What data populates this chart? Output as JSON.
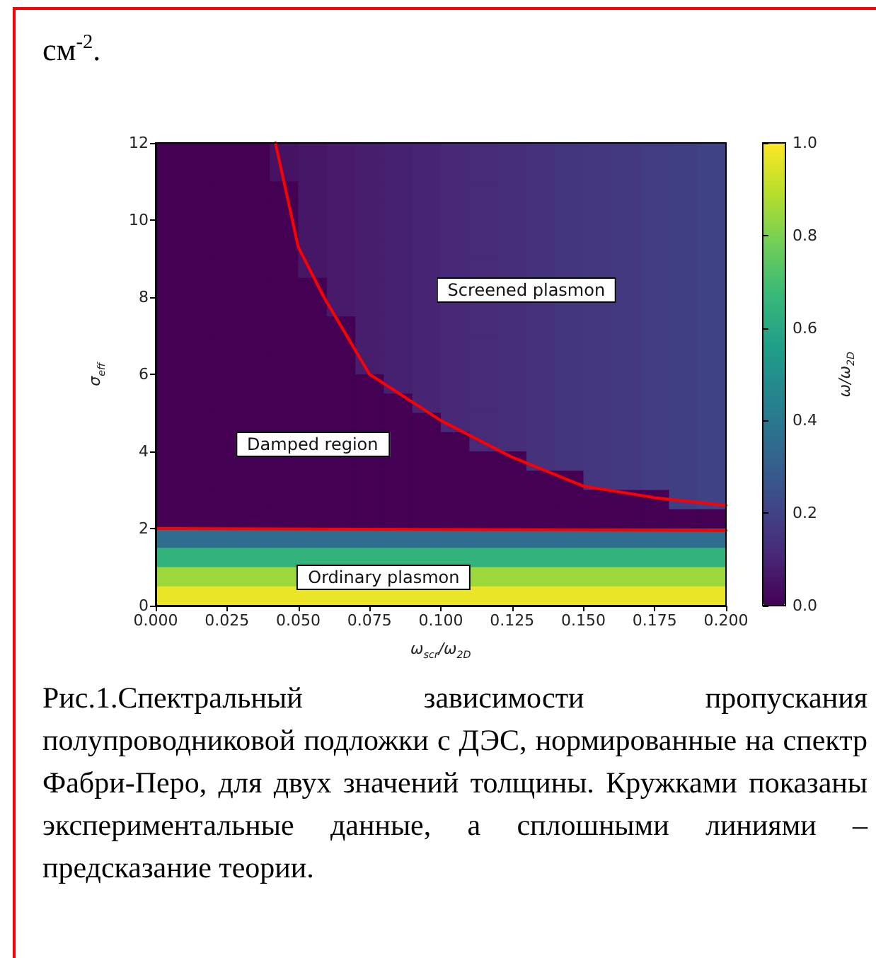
{
  "chart_data": {
    "type": "heatmap",
    "xlabel": "ω$_{scr}$/ω$_{2D}$",
    "ylabel": "σ$_{eff}$",
    "clabel": "ω/ω$_{2D}$",
    "xlim": [
      0,
      0.2
    ],
    "xticks": [
      {
        "value": 0,
        "label": "0.000"
      },
      {
        "value": 0.025,
        "label": "0.025"
      },
      {
        "value": 0.05,
        "label": "0.050"
      },
      {
        "value": 0.075,
        "label": "0.075"
      },
      {
        "value": 0.1,
        "label": "0.100"
      },
      {
        "value": 0.125,
        "label": "0.125"
      },
      {
        "value": 0.15,
        "label": "0.150"
      },
      {
        "value": 0.175,
        "label": "0.175"
      },
      {
        "value": 0.2,
        "label": "0.200"
      }
    ],
    "ylim": [
      0,
      12
    ],
    "yticks": [
      0,
      2,
      4,
      6,
      8,
      10,
      12
    ],
    "clim": [
      0,
      1
    ],
    "cticks": [
      {
        "value": 0,
        "label": "0.0"
      },
      {
        "value": 0.2,
        "label": "0.2"
      },
      {
        "value": 0.4,
        "label": "0.4"
      },
      {
        "value": 0.6,
        "label": "0.6"
      },
      {
        "value": 0.8,
        "label": "0.8"
      },
      {
        "value": 1,
        "label": "1.0"
      }
    ],
    "colors": [
      "#440154",
      "#482878",
      "#3e4989",
      "#31688e",
      "#26828e",
      "#1f9e89",
      "#35b779",
      "#6ece58",
      "#b5de2b",
      "#fde725"
    ],
    "cells": [
      [
        0,
        0,
        0,
        0,
        0.05,
        0.06,
        0.07,
        0.08,
        0.09,
        0.1,
        0.11,
        0.12,
        0.13,
        0.14,
        0.15,
        0.16,
        0.17,
        0.18,
        0.19,
        0.2
      ],
      [
        0,
        0,
        0,
        0,
        0.05,
        0.06,
        0.07,
        0.08,
        0.09,
        0.1,
        0.11,
        0.12,
        0.13,
        0.14,
        0.15,
        0.16,
        0.17,
        0.18,
        0.19,
        0.2
      ],
      [
        0,
        0,
        0,
        0,
        0,
        0.06,
        0.07,
        0.08,
        0.09,
        0.1,
        0.11,
        0.12,
        0.13,
        0.14,
        0.15,
        0.16,
        0.17,
        0.18,
        0.19,
        0.2
      ],
      [
        0,
        0,
        0,
        0,
        0,
        0.06,
        0.07,
        0.08,
        0.09,
        0.1,
        0.11,
        0.12,
        0.13,
        0.14,
        0.15,
        0.16,
        0.17,
        0.18,
        0.19,
        0.2
      ],
      [
        0,
        0,
        0,
        0,
        0,
        0.06,
        0.07,
        0.08,
        0.09,
        0.1,
        0.11,
        0.12,
        0.13,
        0.14,
        0.15,
        0.16,
        0.17,
        0.18,
        0.19,
        0.2
      ],
      [
        0,
        0,
        0,
        0,
        0,
        0.06,
        0.07,
        0.08,
        0.09,
        0.1,
        0.11,
        0.12,
        0.13,
        0.14,
        0.15,
        0.16,
        0.17,
        0.18,
        0.19,
        0.2
      ],
      [
        0,
        0,
        0,
        0,
        0,
        0.06,
        0.07,
        0.08,
        0.09,
        0.1,
        0.11,
        0.12,
        0.13,
        0.14,
        0.15,
        0.16,
        0.17,
        0.18,
        0.19,
        0.2
      ],
      [
        0,
        0,
        0,
        0,
        0,
        0,
        0.07,
        0.08,
        0.09,
        0.1,
        null,
        null,
        null,
        null,
        null,
        null,
        0.17,
        0.18,
        0.19,
        0.2
      ],
      [
        0,
        0,
        0,
        0,
        0,
        0,
        0.07,
        0.08,
        0.09,
        0.1,
        0.11,
        0.12,
        0.13,
        0.14,
        0.15,
        0.16,
        0.17,
        0.18,
        0.19,
        0.2
      ],
      [
        0,
        0,
        0,
        0,
        0,
        0,
        0,
        0.08,
        0.09,
        0.1,
        0.11,
        0.12,
        0.13,
        0.14,
        0.15,
        0.16,
        0.17,
        0.18,
        0.19,
        0.2
      ],
      [
        0,
        0,
        0,
        0,
        0,
        0,
        0,
        0.08,
        0.09,
        0.1,
        0.11,
        0.12,
        0.13,
        0.14,
        0.15,
        0.16,
        0.17,
        0.18,
        0.19,
        0.2
      ],
      [
        0,
        0,
        0,
        0,
        0,
        0,
        0,
        0.08,
        0.09,
        0.1,
        0.11,
        0.12,
        0.13,
        0.14,
        0.15,
        0.16,
        0.17,
        0.18,
        0.19,
        0.2
      ],
      [
        0,
        0,
        0,
        0,
        0,
        0,
        0,
        0,
        0.09,
        0.1,
        0.11,
        0.12,
        0.13,
        0.14,
        0.15,
        0.16,
        0.17,
        0.18,
        0.19,
        0.2
      ],
      [
        0,
        0,
        0,
        0,
        0,
        0,
        0,
        0,
        0,
        0.1,
        0.11,
        0.12,
        0.13,
        0.14,
        0.15,
        0.16,
        0.17,
        0.18,
        0.19,
        0.2
      ],
      [
        0,
        0,
        0,
        0,
        0,
        0,
        0,
        0,
        0,
        0,
        0.11,
        0.12,
        0.13,
        0.14,
        0.15,
        0.16,
        0.17,
        0.18,
        0.19,
        0.2
      ],
      [
        0,
        0,
        0,
        null,
        null,
        null,
        null,
        null,
        0,
        0,
        0,
        0.12,
        0.13,
        0.14,
        0.15,
        0.16,
        0.17,
        0.18,
        0.19,
        0.2
      ],
      [
        0,
        0,
        0,
        0,
        0,
        0,
        0,
        0,
        0,
        0,
        0,
        0,
        0,
        0.14,
        0.15,
        0.16,
        0.17,
        0.18,
        0.19,
        0.2
      ],
      [
        0,
        0,
        0,
        0,
        0,
        0,
        0,
        0,
        0,
        0,
        0,
        0,
        0,
        0,
        0,
        0.16,
        0.17,
        0.18,
        0.19,
        0.2
      ],
      [
        0,
        0,
        0,
        0,
        0,
        0,
        0,
        0,
        0,
        0,
        0,
        0,
        0,
        0,
        0,
        0,
        0,
        0,
        0.19,
        0.2
      ],
      [
        0,
        0,
        0,
        0,
        0,
        0,
        0,
        0,
        0,
        0,
        0,
        0,
        0,
        0,
        0,
        0,
        0,
        0,
        0,
        0
      ],
      [
        0.35,
        0.35,
        0.35,
        0.35,
        0.35,
        0.35,
        0.35,
        0.35,
        0.35,
        0.35,
        0.35,
        0.35,
        0.35,
        0.35,
        0.35,
        0.35,
        0.35,
        0.35,
        0.35,
        0.35
      ],
      [
        0.65,
        0.65,
        0.65,
        0.65,
        0.65,
        0.65,
        0.65,
        0.65,
        0.65,
        0.65,
        0.65,
        0.65,
        0.65,
        0.65,
        0.65,
        0.65,
        0.65,
        0.65,
        0.65,
        0.65
      ],
      [
        0.85,
        0.85,
        0.85,
        0.85,
        0.85,
        null,
        null,
        null,
        null,
        null,
        null,
        0.85,
        0.85,
        0.85,
        0.85,
        0.85,
        0.85,
        0.85,
        0.85,
        0.85
      ],
      [
        0.97,
        0.97,
        0.97,
        0.97,
        0.97,
        0.97,
        0.97,
        0.97,
        0.97,
        0.97,
        0.97,
        0.97,
        0.97,
        0.97,
        0.97,
        0.97,
        0.97,
        0.97,
        0.97,
        0.97
      ]
    ],
    "series": [
      {
        "type": "line",
        "color": "#ff0000",
        "x": [
          0,
          0.2
        ],
        "values": [
          2.0,
          1.95
        ]
      },
      {
        "type": "line",
        "color": "#ff0000",
        "x": [
          0.042,
          0.05,
          0.059,
          0.075,
          0.1,
          0.125,
          0.15,
          0.175,
          0.2
        ],
        "values": [
          12,
          9.3,
          8,
          6.0,
          4.8,
          3.85,
          3.1,
          2.8,
          2.6
        ]
      }
    ],
    "annotations": [
      "см$^{-2}$.",
      "Screened plasmon",
      "Damped region",
      "Ordinary plasmon",
      "Рис.1.Спектральный зависимости пропускания полупроводниковой подложки с ДЭС, нормированные на спектр Фабри-Перо, для двух значений толщины. Кружками показаны экспериментальные данные, а сплошными линиями – предсказание теории."
    ]
  }
}
